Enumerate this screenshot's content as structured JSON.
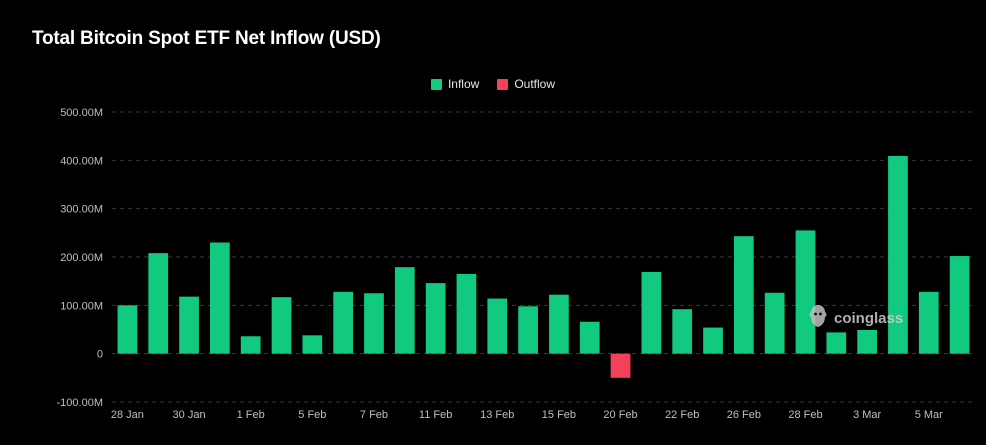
{
  "chart_data": {
    "type": "bar",
    "title": "Total Bitcoin Spot ETF Net Inflow (USD)",
    "legend": [
      {
        "name": "Inflow",
        "color": "#11c97f"
      },
      {
        "name": "Outflow",
        "color": "#f5405a"
      }
    ],
    "x_tick_labels": [
      "28 Jan",
      "30 Jan",
      "1 Feb",
      "5 Feb",
      "7 Feb",
      "11 Feb",
      "13 Feb",
      "15 Feb",
      "20 Feb",
      "22 Feb",
      "26 Feb",
      "28 Feb",
      "3 Mar",
      "5 Mar"
    ],
    "values": [
      100,
      208,
      118,
      230,
      36,
      117,
      38,
      128,
      125,
      179,
      146,
      165,
      114,
      98,
      122,
      66,
      -50,
      169,
      92,
      54,
      243,
      126,
      255,
      44,
      49,
      409,
      128,
      202
    ],
    "y_ticks": [
      -100,
      0,
      100,
      200,
      300,
      400,
      500
    ],
    "y_tick_labels": [
      "-100.00M",
      "0",
      "100.00M",
      "200.00M",
      "300.00M",
      "400.00M",
      "500.00M"
    ],
    "ylim": [
      -100,
      500
    ],
    "unit": "M USD",
    "legend_position": "top-center"
  },
  "watermark": {
    "text": "coinglass"
  }
}
